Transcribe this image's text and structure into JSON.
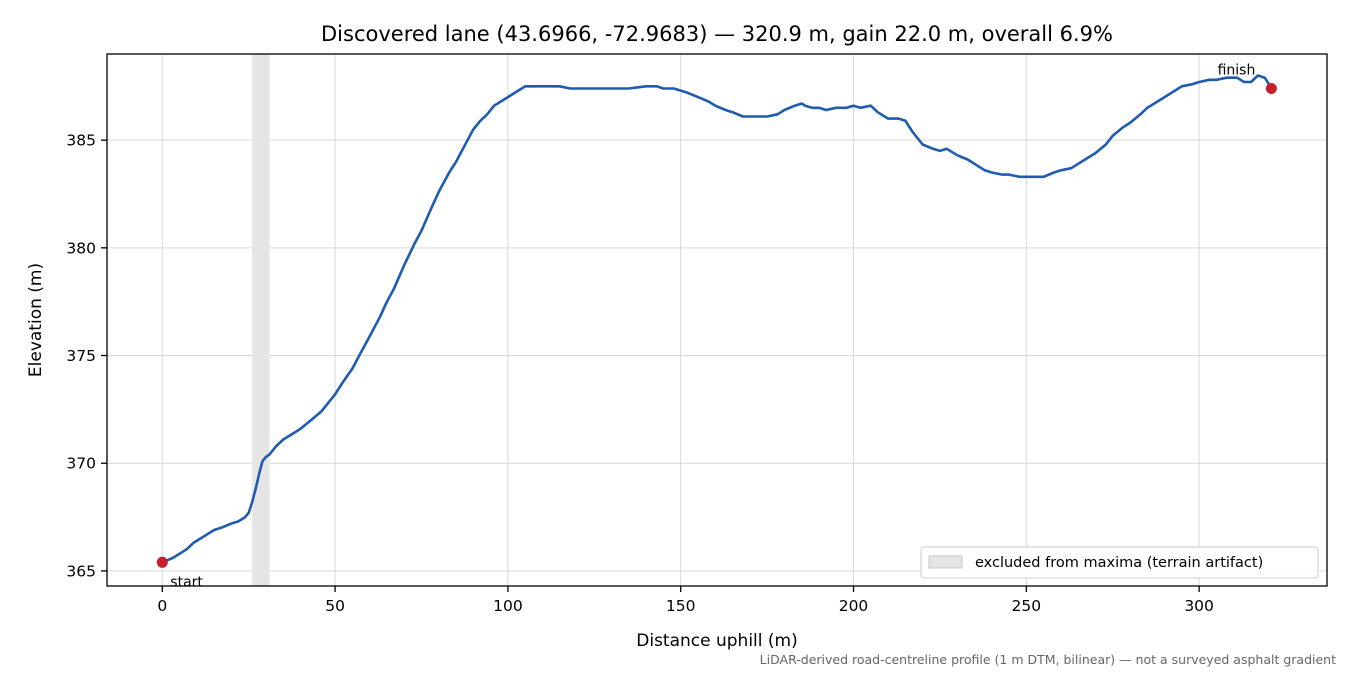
{
  "chart_data": {
    "type": "line",
    "title": "Discovered lane (43.6966, -72.9683) — 320.9 m, gain 22.0 m, overall 6.9%",
    "xlabel": "Distance uphill (m)",
    "ylabel": "Elevation (m)",
    "xlim": [
      -16,
      337
    ],
    "ylim": [
      364.3,
      389.0
    ],
    "xticks": [
      0,
      50,
      100,
      150,
      200,
      250,
      300
    ],
    "yticks": [
      365,
      370,
      375,
      380,
      385
    ],
    "grid": true,
    "legend_position": "bottom-right",
    "series": [
      {
        "color": "#1f5bb0",
        "x": [
          0,
          3,
          5,
          7,
          9,
          11,
          13,
          15,
          17,
          20,
          22,
          24,
          25,
          26,
          27,
          28,
          29,
          30,
          31,
          33,
          35,
          38,
          40,
          43,
          46,
          48,
          50,
          52,
          55,
          57,
          60,
          63,
          65,
          67,
          70,
          73,
          75,
          78,
          80,
          83,
          85,
          88,
          90,
          92,
          94,
          96,
          100,
          103,
          105,
          108,
          110,
          115,
          118,
          120,
          125,
          130,
          135,
          140,
          143,
          145,
          148,
          150,
          152,
          155,
          158,
          160,
          163,
          165,
          168,
          170,
          172,
          175,
          178,
          180,
          183,
          185,
          186,
          188,
          190,
          192,
          195,
          198,
          200,
          202,
          205,
          207,
          210,
          213,
          215,
          217,
          220,
          223,
          225,
          227,
          230,
          233,
          235,
          238,
          240,
          243,
          245,
          248,
          250,
          253,
          255,
          258,
          260,
          263,
          265,
          268,
          270,
          273,
          275,
          278,
          280,
          283,
          285,
          288,
          290,
          293,
          295,
          298,
          300,
          303,
          305,
          308,
          310,
          311,
          313,
          315,
          317,
          319,
          321
        ],
        "y": [
          365.4,
          365.6,
          365.8,
          366.0,
          366.3,
          366.5,
          366.7,
          366.9,
          367.0,
          367.2,
          367.3,
          367.5,
          367.7,
          368.2,
          368.8,
          369.5,
          370.1,
          370.3,
          370.4,
          370.8,
          371.1,
          371.4,
          371.6,
          372.0,
          372.4,
          372.8,
          373.2,
          373.7,
          374.4,
          375.0,
          375.9,
          376.8,
          377.5,
          378.1,
          379.2,
          380.2,
          380.8,
          381.9,
          382.6,
          383.5,
          384.0,
          384.9,
          385.5,
          385.9,
          386.2,
          386.6,
          387.0,
          387.3,
          387.5,
          387.5,
          387.5,
          387.5,
          387.4,
          387.4,
          387.4,
          387.4,
          387.4,
          387.5,
          387.5,
          387.4,
          387.4,
          387.3,
          387.2,
          387.0,
          386.8,
          386.6,
          386.4,
          386.3,
          386.1,
          386.1,
          386.1,
          386.1,
          386.2,
          386.4,
          386.6,
          386.7,
          386.6,
          386.5,
          386.5,
          386.4,
          386.5,
          386.5,
          386.6,
          386.5,
          386.6,
          386.3,
          386.0,
          386.0,
          385.9,
          385.4,
          384.8,
          384.6,
          384.5,
          384.6,
          384.3,
          384.1,
          383.9,
          383.6,
          383.5,
          383.4,
          383.4,
          383.3,
          383.3,
          383.3,
          383.3,
          383.5,
          383.6,
          383.7,
          383.9,
          384.2,
          384.4,
          384.8,
          385.2,
          385.6,
          385.8,
          386.2,
          386.5,
          386.8,
          387.0,
          387.3,
          387.5,
          387.6,
          387.7,
          387.8,
          387.8,
          387.9,
          387.9,
          387.9,
          387.7,
          387.7,
          388.0,
          387.9,
          387.4
        ]
      }
    ],
    "shaded_region": {
      "x": [
        26,
        31
      ],
      "color": "#e5e5e5"
    },
    "points": [
      {
        "x": 0,
        "y": 365.4,
        "label": "start",
        "color": "#c81e2a"
      },
      {
        "x": 320.9,
        "y": 387.4,
        "label": "finish",
        "color": "#c81e2a"
      }
    ],
    "legend": [
      {
        "label": "excluded from maxima (terrain artifact)",
        "swatch": "#e5e5e5"
      }
    ],
    "footnote": "LiDAR-derived road-centreline profile (1 m DTM, bilinear) — not a surveyed asphalt gradient"
  }
}
